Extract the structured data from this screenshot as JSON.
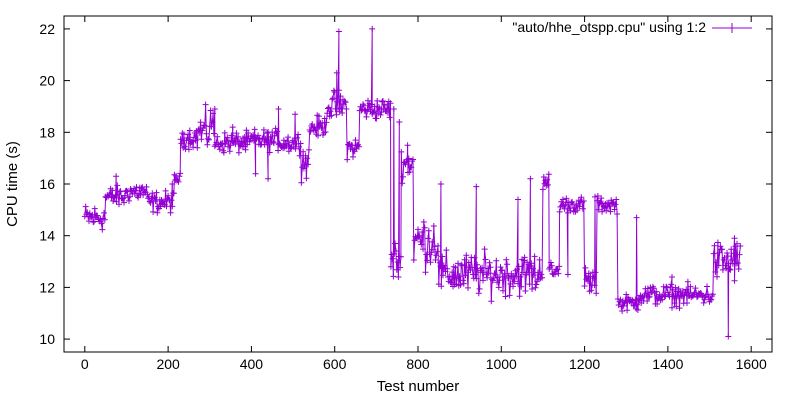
{
  "chart_data": {
    "type": "line",
    "marker": "plus",
    "title": "",
    "xlabel": "Test number",
    "ylabel": "CPU time (s)",
    "xlim": [
      -50,
      1650
    ],
    "ylim": [
      9.5,
      22.5
    ],
    "xticks": [
      0,
      200,
      400,
      600,
      800,
      1000,
      1200,
      1400,
      1600
    ],
    "yticks": [
      10,
      12,
      14,
      16,
      18,
      20,
      22
    ],
    "grid": false,
    "legend_position": "top-right",
    "color": "#9400d3",
    "series": [
      {
        "name": "\"auto/hhe_otspp.cpu\" using 1:2",
        "segments": [
          {
            "x0": 0,
            "x1": 50,
            "base": 14.7,
            "noise": 0.25
          },
          {
            "x0": 50,
            "x1": 100,
            "base": 15.5,
            "noise": 0.2
          },
          {
            "x0": 100,
            "x1": 150,
            "base": 15.7,
            "noise": 0.2
          },
          {
            "x0": 150,
            "x1": 215,
            "base": 15.3,
            "noise": 0.2
          },
          {
            "x0": 215,
            "x1": 230,
            "base": 16.2,
            "noise": 0.1
          },
          {
            "x0": 230,
            "x1": 270,
            "base": 17.8,
            "noise": 0.2
          },
          {
            "x0": 270,
            "x1": 300,
            "base": 18.0,
            "noise": 0.4
          },
          {
            "x0": 300,
            "x1": 310,
            "base": 18.5,
            "noise": 0.3
          },
          {
            "x0": 310,
            "x1": 400,
            "base": 17.6,
            "noise": 0.2
          },
          {
            "x0": 400,
            "x1": 470,
            "base": 17.7,
            "noise": 0.2
          },
          {
            "x0": 470,
            "x1": 520,
            "base": 17.6,
            "noise": 0.2
          },
          {
            "x0": 520,
            "x1": 540,
            "base": 16.9,
            "noise": 0.3
          },
          {
            "x0": 540,
            "x1": 580,
            "base": 18.2,
            "noise": 0.2
          },
          {
            "x0": 580,
            "x1": 630,
            "base": 19.0,
            "noise": 0.3
          },
          {
            "x0": 630,
            "x1": 660,
            "base": 17.4,
            "noise": 0.2
          },
          {
            "x0": 660,
            "x1": 735,
            "base": 18.9,
            "noise": 0.2
          },
          {
            "x0": 735,
            "x1": 760,
            "base": 13.0,
            "noise": 0.4
          },
          {
            "x0": 760,
            "x1": 790,
            "base": 16.8,
            "noise": 0.3
          },
          {
            "x0": 790,
            "x1": 850,
            "base": 13.8,
            "noise": 0.5
          },
          {
            "x0": 850,
            "x1": 1100,
            "base": 12.5,
            "noise": 0.4
          },
          {
            "x0": 1100,
            "x1": 1115,
            "base": 16.2,
            "noise": 0.2
          },
          {
            "x0": 1115,
            "x1": 1140,
            "base": 12.6,
            "noise": 0.2
          },
          {
            "x0": 1140,
            "x1": 1200,
            "base": 15.2,
            "noise": 0.15
          },
          {
            "x0": 1200,
            "x1": 1230,
            "base": 12.2,
            "noise": 0.3
          },
          {
            "x0": 1230,
            "x1": 1280,
            "base": 15.2,
            "noise": 0.15
          },
          {
            "x0": 1280,
            "x1": 1330,
            "base": 11.4,
            "noise": 0.15
          },
          {
            "x0": 1330,
            "x1": 1510,
            "base": 11.7,
            "noise": 0.2
          },
          {
            "x0": 1510,
            "x1": 1575,
            "base": 13.0,
            "noise": 0.4
          }
        ],
        "peaks": [
          {
            "x": 75,
            "y": 16.3
          },
          {
            "x": 210,
            "y": 16.0
          },
          {
            "x": 312,
            "y": 18.9
          },
          {
            "x": 355,
            "y": 18.2
          },
          {
            "x": 410,
            "y": 16.4
          },
          {
            "x": 440,
            "y": 16.2
          },
          {
            "x": 465,
            "y": 18.9
          },
          {
            "x": 505,
            "y": 18.7
          },
          {
            "x": 610,
            "y": 21.9
          },
          {
            "x": 690,
            "y": 22.0
          },
          {
            "x": 605,
            "y": 20.3
          },
          {
            "x": 742,
            "y": 18.9
          },
          {
            "x": 755,
            "y": 18.4
          },
          {
            "x": 775,
            "y": 17.5
          },
          {
            "x": 855,
            "y": 16.0
          },
          {
            "x": 940,
            "y": 15.9
          },
          {
            "x": 1040,
            "y": 15.4
          },
          {
            "x": 1070,
            "y": 16.2
          },
          {
            "x": 1160,
            "y": 12.5
          },
          {
            "x": 1225,
            "y": 15.5
          },
          {
            "x": 1325,
            "y": 14.7
          },
          {
            "x": 1410,
            "y": 12.4
          },
          {
            "x": 1545,
            "y": 10.1
          },
          {
            "x": 1560,
            "y": 13.9
          }
        ]
      }
    ]
  }
}
